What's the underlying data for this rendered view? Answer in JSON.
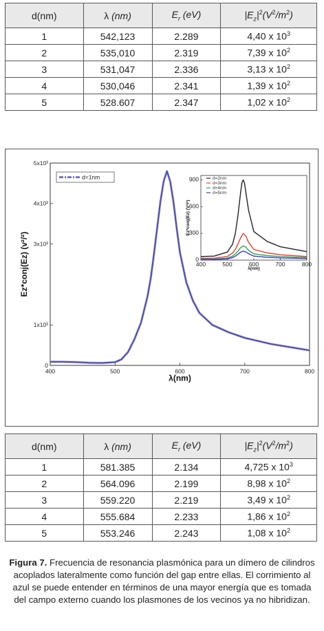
{
  "table1": {
    "headers": {
      "d": "d(nm)",
      "lambda_sym": "λ",
      "lambda_unit": "(nm)",
      "e_sym": "E",
      "e_sub": "r",
      "e_unit": "(eV)",
      "ez_pre": "|E",
      "ez_sub": "z",
      "ez_post": "|",
      "ez_units": "(V",
      "ez_units_sup": "2",
      "ez_units_mid": "/m",
      "ez_units_sup2": "2",
      "ez_units_end": ")"
    },
    "rows": [
      {
        "d": "1",
        "lambda": "542,123",
        "e": "2.289",
        "ez_base": "4,40 x 10",
        "ez_exp": "3"
      },
      {
        "d": "2",
        "lambda": "535,010",
        "e": "2.319",
        "ez_base": "7,39 x 10",
        "ez_exp": "2"
      },
      {
        "d": "3",
        "lambda": "531,047",
        "e": "2.336",
        "ez_base": "3,13 x 10",
        "ez_exp": "2"
      },
      {
        "d": "4",
        "lambda": "530,046",
        "e": "2.341",
        "ez_base": "1,39 x 10",
        "ez_exp": "2"
      },
      {
        "d": "5",
        "lambda": "528.607",
        "e": "2.347",
        "ez_base": "1,02 x 10",
        "ez_exp": "2"
      }
    ]
  },
  "table2": {
    "headers": {
      "d": "d(nm)",
      "lambda_sym": "λ",
      "lambda_unit": "(nm)",
      "e_sym": "E",
      "e_sub": "r",
      "e_unit": "(eV)",
      "ez_pre": "|E",
      "ez_sub": "z",
      "ez_post": "|",
      "ez_units": "(V",
      "ez_units_sup": "2",
      "ez_units_mid": "/m",
      "ez_units_sup2": "2",
      "ez_units_end": ")"
    },
    "rows": [
      {
        "d": "1",
        "lambda": "581.385",
        "e": "2.134",
        "ez_base": "4,725 x 10",
        "ez_exp": "3"
      },
      {
        "d": "2",
        "lambda": "564.096",
        "e": "2.199",
        "ez_base": "8,98 x 10",
        "ez_exp": "2"
      },
      {
        "d": "3",
        "lambda": "559.220",
        "e": "2.219",
        "ez_base": "3,49 x 10",
        "ez_exp": "2"
      },
      {
        "d": "4",
        "lambda": "555.684",
        "e": "2.233",
        "ez_base": "1,86 x 10",
        "ez_exp": "2"
      },
      {
        "d": "5",
        "lambda": "553.246",
        "e": "2.243",
        "ez_base": "1,08 x 10",
        "ez_exp": "2"
      }
    ]
  },
  "chart_data": [
    {
      "type": "line",
      "xlabel": "λ(nm)",
      "ylabel": "Ez*conj(Ez) (v²/²)",
      "xlim": [
        400,
        800
      ],
      "ylim": [
        0,
        5000
      ],
      "x_ticks": [
        "400",
        "500",
        "600",
        "700",
        "800"
      ],
      "y_ticks": [
        {
          "value": 0,
          "label": "0"
        },
        {
          "value": 1000,
          "label": "1x10³"
        },
        {
          "value": 3000,
          "label": "3x10³"
        },
        {
          "value": 4000,
          "label": "4x10³"
        },
        {
          "value": 5000,
          "label": "5x10³"
        }
      ],
      "legend": "top-left",
      "series": [
        {
          "name": "d=1nm",
          "color": "#4a4ab8",
          "x": [
            400,
            420,
            440,
            460,
            480,
            500,
            510,
            520,
            530,
            540,
            550,
            555,
            560,
            565,
            570,
            575,
            580,
            585,
            590,
            595,
            600,
            610,
            620,
            630,
            650,
            675,
            700,
            740,
            770,
            800
          ],
          "y": [
            90,
            88,
            80,
            65,
            60,
            80,
            150,
            330,
            650,
            1050,
            1700,
            2150,
            2750,
            3400,
            4050,
            4550,
            4800,
            4550,
            4050,
            3400,
            2800,
            2050,
            1600,
            1300,
            1000,
            820,
            680,
            530,
            450,
            370
          ]
        }
      ]
    },
    {
      "type": "line",
      "title": "",
      "xlabel": "λ(nm)",
      "ylabel": "Ez*conj(Ez) (V²/²)",
      "xlim": [
        400,
        800
      ],
      "ylim": [
        0,
        950
      ],
      "x_ticks": [
        "400",
        "500",
        "600",
        "700",
        "800"
      ],
      "y_ticks": [
        {
          "value": 0,
          "label": "0"
        },
        {
          "value": 300,
          "label": "300"
        },
        {
          "value": 600,
          "label": "600"
        },
        {
          "value": 900,
          "label": "900"
        }
      ],
      "legend": "top-left",
      "series": [
        {
          "name": "d=2nm",
          "color": "#222222",
          "x": [
            400,
            450,
            500,
            520,
            530,
            540,
            550,
            555,
            560,
            565,
            570,
            580,
            600,
            650,
            700,
            800
          ],
          "y": [
            40,
            45,
            90,
            180,
            300,
            500,
            760,
            870,
            900,
            860,
            760,
            560,
            320,
            210,
            150,
            95
          ]
        },
        {
          "name": "d=3nm",
          "color": "#e53a2a",
          "x": [
            400,
            450,
            500,
            520,
            530,
            540,
            550,
            560,
            570,
            580,
            600,
            650,
            700,
            800
          ],
          "y": [
            20,
            22,
            40,
            80,
            120,
            180,
            250,
            300,
            270,
            200,
            120,
            80,
            60,
            40
          ]
        },
        {
          "name": "d=4nm",
          "color": "#2aa84a",
          "x": [
            400,
            450,
            500,
            520,
            530,
            540,
            550,
            560,
            570,
            580,
            600,
            650,
            700,
            800
          ],
          "y": [
            10,
            11,
            22,
            45,
            70,
            100,
            140,
            160,
            145,
            110,
            70,
            50,
            40,
            28
          ]
        },
        {
          "name": "d=5nm",
          "color": "#3a3ad0",
          "x": [
            400,
            450,
            500,
            520,
            530,
            540,
            550,
            560,
            570,
            580,
            600,
            650,
            700,
            800
          ],
          "y": [
            5,
            6,
            14,
            28,
            45,
            65,
            90,
            100,
            92,
            72,
            45,
            32,
            25,
            18
          ]
        }
      ]
    }
  ],
  "caption": {
    "label": "Figura 7.",
    "text": "Frecuencia de resonancia plasmónica para un dímero de cilindros acoplados lateralmente como función del gap entre ellas. El corrimiento al azul se puede entender en términos de una mayor energía que es tomada del campo externo cuando los plasmones de los vecinos ya no hibridizan."
  }
}
